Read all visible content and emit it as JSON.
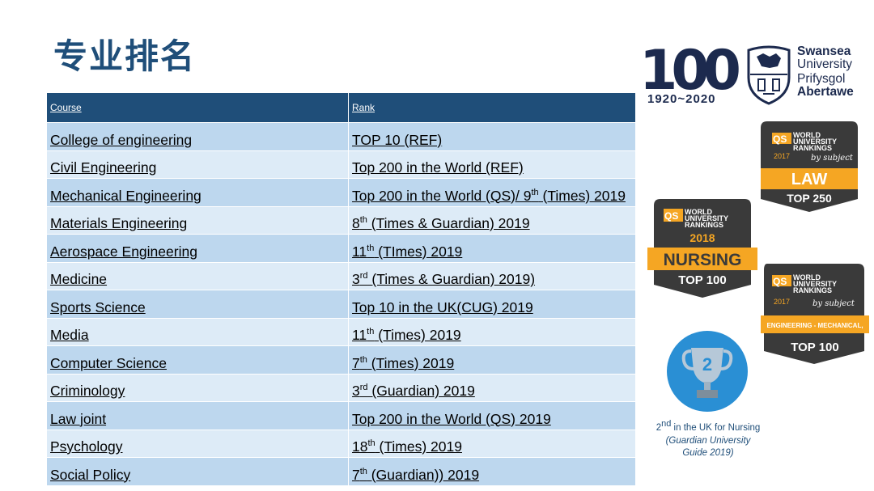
{
  "title": "专业排名",
  "table": {
    "headers": {
      "course": "Course",
      "rank": "Rank"
    },
    "rows": [
      {
        "course": "College of engineering",
        "rank_pre": "TOP 10 (REF)",
        "rank_sup": "",
        "rank_post": "",
        "rank_sup2": "",
        "rank_post2": ""
      },
      {
        "course": "Civil Engineering",
        "rank_pre": "Top 200 in the World (REF)",
        "rank_sup": "",
        "rank_post": "",
        "rank_sup2": "",
        "rank_post2": ""
      },
      {
        "course": "Mechanical Engineering",
        "rank_pre": "Top 200 in the World (QS)/ 9",
        "rank_sup": "th",
        "rank_post": " (Times) 2019",
        "rank_sup2": "",
        "rank_post2": ""
      },
      {
        "course": "Materials Engineering",
        "rank_pre": "8",
        "rank_sup": "th",
        "rank_post": " (Times & Guardian) 2019",
        "rank_sup2": "",
        "rank_post2": ""
      },
      {
        "course": "Aerospace Engineering",
        "rank_pre": "11",
        "rank_sup": "th",
        "rank_post": " (TImes) 2019",
        "rank_sup2": "",
        "rank_post2": ""
      },
      {
        "course": "Medicine",
        "rank_pre": "3",
        "rank_sup": "rd",
        "rank_post": " (Times & Guardian) 2019)",
        "rank_sup2": "",
        "rank_post2": ""
      },
      {
        "course": "Sports Science",
        "rank_pre": "Top 10 in the UK(CUG) 2019",
        "rank_sup": "",
        "rank_post": "",
        "rank_sup2": "",
        "rank_post2": ""
      },
      {
        "course": "Media",
        "rank_pre": "11",
        "rank_sup": "th",
        "rank_post": " (Times) 2019",
        "rank_sup2": "",
        "rank_post2": ""
      },
      {
        "course": "Computer Science",
        "rank_pre": "7",
        "rank_sup": "th",
        "rank_post": " (Times) 2019",
        "rank_sup2": "",
        "rank_post2": ""
      },
      {
        "course": "Criminology",
        "rank_pre": "3",
        "rank_sup": "rd",
        "rank_post": " (Guardian) 2019",
        "rank_sup2": "",
        "rank_post2": ""
      },
      {
        "course": "Law joint",
        "rank_pre": "Top 200 in the World (QS) 2019",
        "rank_sup": "",
        "rank_post": "",
        "rank_sup2": "",
        "rank_post2": ""
      },
      {
        "course": "Psychology",
        "rank_pre": "18",
        "rank_sup": "th",
        "rank_post": " (Times) 2019",
        "rank_sup2": "",
        "rank_post2": ""
      },
      {
        "course": "Social Policy",
        "rank_pre": "7",
        "rank_sup": "th",
        "rank_post": "  (Guardian)) 2019",
        "rank_sup2": "",
        "rank_post2": ""
      }
    ]
  },
  "logo": {
    "big_number": "100",
    "years": "1920~2020",
    "name_line1": "Swansea",
    "name_line2": "University",
    "name_line3": "Prifysgol",
    "name_line4": "Abertawe"
  },
  "badges": {
    "law": {
      "qs": "QS",
      "line1": "WORLD",
      "line2": "UNIVERSITY",
      "line3": "RANKINGS",
      "year": "2017",
      "by": "by subject",
      "subject": "LAW",
      "rank": "TOP 250"
    },
    "nursing": {
      "qs": "QS",
      "line1": "WORLD",
      "line2": "UNIVERSITY",
      "line3": "RANKINGS",
      "year": "2018",
      "subject": "NURSING",
      "rank": "TOP 100"
    },
    "mech": {
      "qs": "QS",
      "line1": "WORLD",
      "line2": "UNIVERSITY",
      "line3": "RANKINGS",
      "year": "2017",
      "by": "by subject",
      "subject": "ENGINEERING - MECHANICAL,",
      "rank": "TOP 100"
    }
  },
  "cup": {
    "number": "2",
    "caption_num": "2",
    "caption_sup": "nd",
    "caption_rest": " in the UK for Nursing",
    "caption_line2": "(Guardian University",
    "caption_line3": "Guide 2019)"
  },
  "colors": {
    "header": "#1f4e79",
    "row_odd": "#bdd7ee",
    "row_even": "#ddebf7",
    "badge_dark": "#3a3a3a",
    "badge_gold": "#f5a623"
  }
}
